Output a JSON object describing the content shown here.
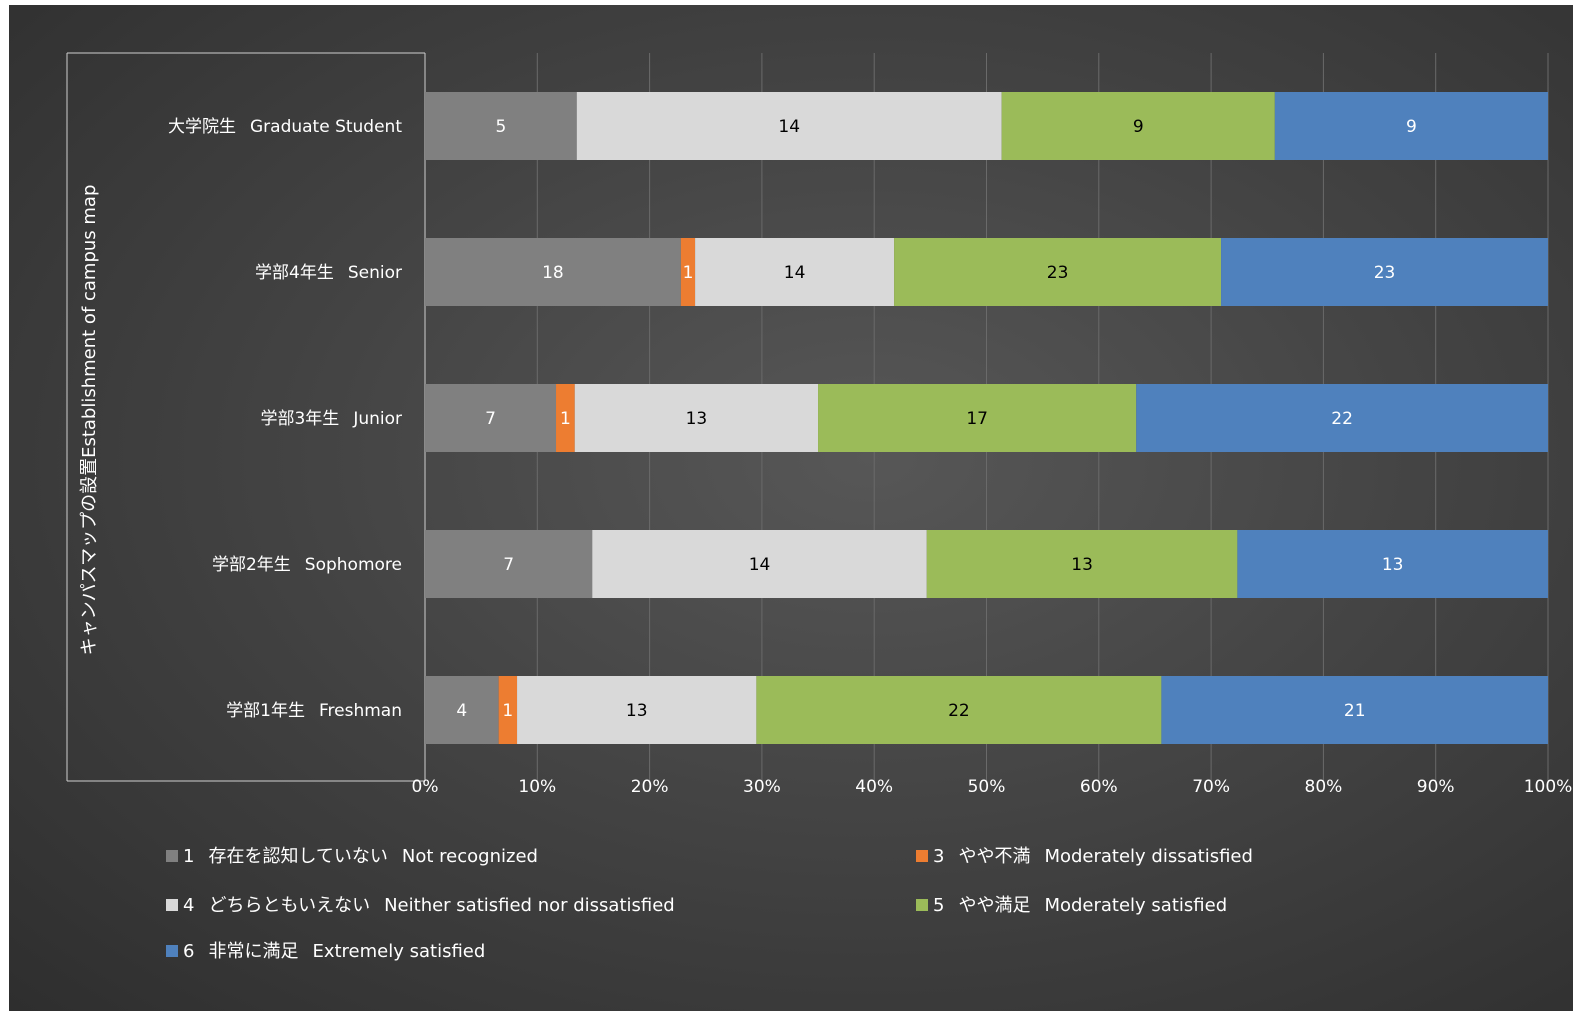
{
  "chart_data": {
    "type": "bar",
    "orientation": "horizontal",
    "stacking": "percent",
    "vertical_label": "キャンパスマップの設置Establishment of campus map",
    "categories": [
      "大学院生 Graduate Student",
      "学部4年生 Senior",
      "学部3年生 Junior",
      "学部2年生 Sophomore",
      "学部1年生 Freshman"
    ],
    "category_labels": [
      {
        "ja": "大学院生",
        "en": "Graduate Student"
      },
      {
        "ja": "学部4年生",
        "en": "Senior"
      },
      {
        "ja": "学部3年生",
        "en": "Junior"
      },
      {
        "ja": "学部2年生",
        "en": "Sophomore"
      },
      {
        "ja": "学部1年生",
        "en": "Freshman"
      }
    ],
    "series": [
      {
        "name": "1 存在を認知していない Not recognized",
        "num": "1",
        "ja": "存在を認知していない",
        "en": "Not recognized",
        "color": "#808080",
        "label_color": "#ffffff",
        "values": [
          5,
          18,
          7,
          7,
          4
        ]
      },
      {
        "name": "3 やや不満 Moderately dissatisfied",
        "num": "3",
        "ja": "やや不満",
        "en": "Moderately dissatisfied",
        "color": "#ed7d31",
        "label_color": "#ffffff",
        "values": [
          0,
          1,
          1,
          0,
          1
        ]
      },
      {
        "name": "4 どちらともいえない Neither satisfied nor dissatisfied",
        "num": "4",
        "ja": "どちらともいえない",
        "en": "Neither satisfied nor dissatisfied",
        "color": "#d9d9d9",
        "label_color": "#000000",
        "values": [
          14,
          14,
          13,
          14,
          13
        ]
      },
      {
        "name": "5 やや満足 Moderately satisfied",
        "num": "5",
        "ja": "やや満足",
        "en": "Moderately satisfied",
        "color": "#9bbb59",
        "label_color": "#000000",
        "values": [
          9,
          23,
          17,
          13,
          22
        ]
      },
      {
        "name": "6 非常に満足 Extremely satisfied",
        "num": "6",
        "ja": "非常に満足",
        "en": "Extremely satisfied",
        "color": "#4f81bd",
        "label_color": "#ffffff",
        "values": [
          9,
          23,
          22,
          13,
          21
        ]
      }
    ],
    "x_ticks": [
      "0%",
      "10%",
      "20%",
      "30%",
      "40%",
      "50%",
      "60%",
      "70%",
      "80%",
      "90%",
      "100%"
    ],
    "xlim": [
      0,
      100
    ],
    "grid": true,
    "legend_position": "bottom"
  }
}
